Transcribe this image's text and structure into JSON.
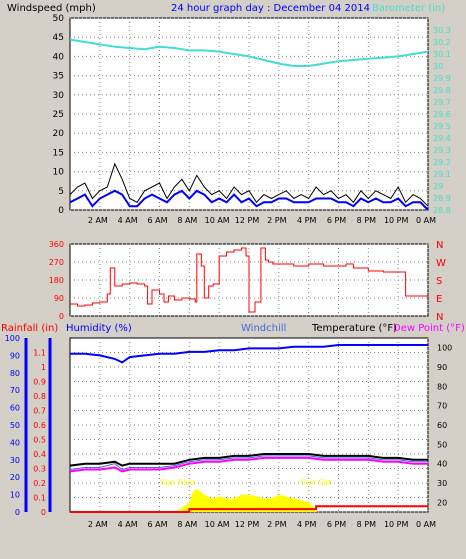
{
  "chart_data": [
    {
      "type": "line",
      "panel": "wind-barometer",
      "title": "24 hour graph day : December 04 2014",
      "ylabel": "Windspeed (mph)",
      "y2label": "Barometer (in)",
      "ylim": [
        0,
        50
      ],
      "y2lim": [
        28.8,
        30.4
      ],
      "yticks": [
        "0",
        "5",
        "10",
        "15",
        "20",
        "25",
        "30",
        "35",
        "40",
        "45",
        "50"
      ],
      "y2ticks": [
        "28.8",
        "28.9",
        "29",
        "29.1",
        "29.2",
        "29.3",
        "29.4",
        "29.5",
        "29.6",
        "29.7",
        "29.8",
        "29.9",
        "30",
        "30.1",
        "30.2",
        "30.3"
      ],
      "xticks": [
        "2 AM",
        "4 AM",
        "6 AM",
        "8 AM",
        "10 AM",
        "12 PM",
        "2 PM",
        "4 PM",
        "6 PM",
        "8 PM",
        "10 PM",
        "0 AM"
      ],
      "grid": true,
      "colors": {
        "gust": "#000000",
        "wind": "#0000ff",
        "avg": "#808080",
        "barometer": "#40e0d0",
        "title": "#0000ff"
      },
      "series": [
        {
          "name": "Barometer (in)",
          "axis": "right",
          "x": [
            0,
            1,
            2,
            3,
            4,
            5,
            6,
            7,
            8,
            9,
            10,
            11,
            12,
            13,
            14,
            15,
            16,
            17,
            18,
            19,
            20,
            21,
            22,
            23,
            24
          ],
          "values": [
            30.22,
            30.2,
            30.18,
            30.16,
            30.15,
            30.14,
            30.16,
            30.15,
            30.13,
            30.13,
            30.12,
            30.1,
            30.08,
            30.05,
            30.02,
            30.0,
            30.0,
            30.02,
            30.04,
            30.05,
            30.06,
            30.07,
            30.08,
            30.1,
            30.12
          ]
        },
        {
          "name": "Wind gust (mph)",
          "x": [
            0,
            0.5,
            1,
            1.5,
            2,
            2.5,
            3,
            3.5,
            4,
            4.5,
            5,
            5.5,
            6,
            6.5,
            7,
            7.5,
            8,
            8.5,
            9,
            9.5,
            10,
            10.5,
            11,
            11.5,
            12,
            12.5,
            13,
            13.5,
            14,
            14.5,
            15,
            15.5,
            16,
            16.5,
            17,
            17.5,
            18,
            18.5,
            19,
            19.5,
            20,
            20.5,
            21,
            21.5,
            22,
            22.5,
            23,
            23.5,
            24
          ],
          "values": [
            4,
            6,
            7,
            3,
            5,
            6,
            12,
            8,
            3,
            2,
            5,
            6,
            7,
            3,
            6,
            8,
            5,
            9,
            6,
            4,
            5,
            3,
            6,
            4,
            5,
            2,
            4,
            3,
            4,
            5,
            3,
            4,
            3,
            6,
            4,
            5,
            3,
            4,
            2,
            5,
            3,
            5,
            4,
            3,
            6,
            2,
            4,
            3,
            1
          ]
        },
        {
          "name": "Wind speed (mph)",
          "x": [
            0,
            0.5,
            1,
            1.5,
            2,
            2.5,
            3,
            3.5,
            4,
            4.5,
            5,
            5.5,
            6,
            6.5,
            7,
            7.5,
            8,
            8.5,
            9,
            9.5,
            10,
            10.5,
            11,
            11.5,
            12,
            12.5,
            13,
            13.5,
            14,
            14.5,
            15,
            15.5,
            16,
            16.5,
            17,
            17.5,
            18,
            18.5,
            19,
            19.5,
            20,
            20.5,
            21,
            21.5,
            22,
            22.5,
            23,
            23.5,
            24
          ],
          "values": [
            2,
            3,
            4,
            1,
            3,
            4,
            5,
            4,
            1,
            1,
            3,
            4,
            3,
            2,
            4,
            5,
            3,
            5,
            4,
            2,
            3,
            2,
            4,
            2,
            3,
            1,
            2,
            2,
            3,
            3,
            2,
            2,
            2,
            3,
            3,
            3,
            2,
            2,
            1,
            3,
            2,
            3,
            2,
            2,
            3,
            1,
            2,
            2,
            0
          ]
        }
      ]
    },
    {
      "type": "line",
      "panel": "wind-direction",
      "ylim": [
        0,
        360
      ],
      "yticks": [
        "0",
        "90",
        "180",
        "270",
        "360"
      ],
      "y2ticks": [
        "N",
        "E",
        "S",
        "W",
        "N"
      ],
      "xticks": [
        "2 AM",
        "4 AM",
        "6 AM",
        "8 AM",
        "10 AM",
        "12 PM",
        "2 PM",
        "4 PM",
        "6 PM",
        "8 PM",
        "10 PM",
        "0 AM"
      ],
      "grid": true,
      "colors": {
        "direction": "#ff0000"
      },
      "series": [
        {
          "name": "Wind direction (deg)",
          "x": [
            0,
            0.5,
            1,
            1.5,
            2,
            2.5,
            2.7,
            3,
            3.3,
            3.5,
            4,
            4.5,
            5,
            5.2,
            5.5,
            6,
            6.3,
            6.6,
            7,
            7.5,
            8,
            8.4,
            8.5,
            8.8,
            9,
            9.3,
            9.6,
            10,
            10.5,
            11,
            11.5,
            11.8,
            12.0,
            12.2,
            12.4,
            12.8,
            13.1,
            13.3,
            13.6,
            14,
            15,
            16,
            17,
            18,
            18.5,
            19,
            19.5,
            20,
            21,
            22,
            22.5,
            23,
            24
          ],
          "values": [
            60,
            50,
            55,
            65,
            70,
            110,
            240,
            150,
            150,
            160,
            165,
            160,
            150,
            60,
            130,
            110,
            70,
            100,
            80,
            90,
            85,
            70,
            310,
            250,
            90,
            150,
            160,
            300,
            320,
            330,
            340,
            300,
            20,
            20,
            70,
            340,
            280,
            270,
            260,
            260,
            250,
            260,
            250,
            250,
            260,
            240,
            240,
            225,
            220,
            220,
            100,
            100,
            95
          ]
        }
      ]
    },
    {
      "type": "line",
      "panel": "temperature-humidity-rain",
      "ylabel": "Temperature (°F)",
      "y2label": "Dew Point (°F)",
      "legend": [
        "Rainfall (in)",
        "Humidity (%)",
        "Windchill",
        "Temperature (°F)",
        "Dew Point (°F)"
      ],
      "ylim": [
        15,
        105
      ],
      "rain_lim": [
        0,
        1.2
      ],
      "hum_lim": [
        0,
        100
      ],
      "rain_ticks": [
        "0",
        "0.1",
        "0.2",
        "0.3",
        "0.4",
        "0.5",
        "0.6",
        "0.7",
        "0.8",
        "0.9",
        "1",
        "1.1"
      ],
      "hum_ticks": [
        "0",
        "10",
        "20",
        "30",
        "40",
        "50",
        "60",
        "70",
        "80",
        "90",
        "100"
      ],
      "temp_ticks": [
        "20",
        "30",
        "40",
        "50",
        "60",
        "70",
        "80",
        "90",
        "100"
      ],
      "xticks": [
        "2 AM",
        "4 AM",
        "6 AM",
        "8 AM",
        "10 AM",
        "12 PM",
        "2 PM",
        "4 PM",
        "6 PM",
        "8 PM",
        "10 PM",
        "0 AM"
      ],
      "annotations": [
        "Sun Rise",
        "Sun Set"
      ],
      "sunrise": 7.2,
      "sunset": 16.5,
      "grid": true,
      "colors": {
        "rain": "#ff0000",
        "humidity": "#0000ff",
        "windchill": "#4169e1",
        "temperature": "#000000",
        "dewpoint": "#ff00ff",
        "solar": "#ffff00"
      },
      "series": [
        {
          "name": "Humidity (%)",
          "axis": "humidity",
          "x": [
            0,
            1,
            2,
            3,
            3.5,
            4,
            5,
            6,
            7,
            8,
            9,
            10,
            11,
            12,
            13,
            14,
            15,
            16,
            17,
            18,
            19,
            20,
            21,
            22,
            23,
            24
          ],
          "values": [
            91,
            91,
            90,
            88,
            86,
            89,
            90,
            91,
            91,
            92,
            92,
            93,
            93,
            94,
            94,
            94,
            95,
            95,
            95,
            96,
            96,
            96,
            96,
            96,
            96,
            96
          ]
        },
        {
          "name": "Temperature (°F)",
          "axis": "temp",
          "x": [
            0,
            1,
            2,
            3,
            3.5,
            4,
            5,
            6,
            7,
            8,
            9,
            10,
            11,
            12,
            13,
            14,
            15,
            16,
            17,
            18,
            19,
            20,
            21,
            22,
            23,
            24
          ],
          "values": [
            39,
            40,
            40,
            41,
            39,
            40,
            40,
            40,
            40,
            42,
            43,
            43,
            44,
            44,
            45,
            45,
            45,
            45,
            44,
            44,
            44,
            44,
            43,
            43,
            42,
            42
          ]
        },
        {
          "name": "Windchill",
          "axis": "temp",
          "x": [
            0,
            1,
            2,
            3,
            3.5,
            4,
            5,
            6,
            7,
            8,
            9,
            10,
            11,
            12,
            13,
            14,
            15,
            16,
            17,
            18,
            19,
            20,
            21,
            22,
            23,
            24
          ],
          "values": [
            37,
            38,
            38,
            40,
            37,
            38,
            38,
            38,
            39,
            41,
            42,
            42,
            43,
            43,
            44,
            44,
            44,
            44,
            43,
            43,
            43,
            43,
            42,
            42,
            41,
            41
          ]
        },
        {
          "name": "Dew Point (°F)",
          "axis": "temp",
          "x": [
            0,
            1,
            2,
            3,
            3.5,
            4,
            5,
            6,
            7,
            8,
            9,
            10,
            11,
            12,
            13,
            14,
            15,
            16,
            17,
            18,
            19,
            20,
            21,
            22,
            23,
            24
          ],
          "values": [
            36,
            37,
            37,
            38,
            36,
            37,
            37,
            37,
            38,
            40,
            41,
            41,
            42,
            42,
            43,
            43,
            43,
            43,
            42,
            42,
            42,
            42,
            41,
            41,
            40,
            40
          ]
        },
        {
          "name": "Rainfall (in)",
          "axis": "rain",
          "x": [
            0,
            7.5,
            8,
            9,
            16,
            16.5,
            17,
            24
          ],
          "values": [
            0,
            0,
            0.02,
            0.02,
            0.02,
            0.04,
            0.04,
            0.04
          ]
        },
        {
          "name": "Solar",
          "axis": "temp",
          "x": [
            7.2,
            7.5,
            8,
            8.2,
            8.5,
            9,
            9.5,
            10,
            10.5,
            11,
            11.5,
            12,
            12.5,
            13,
            13.5,
            14,
            14.5,
            15,
            15.5,
            16,
            16.5
          ],
          "values": [
            16,
            17,
            20,
            25,
            27,
            24,
            22,
            23,
            22,
            22,
            24,
            24,
            23,
            22,
            22,
            24,
            23,
            22,
            21,
            20,
            16
          ]
        }
      ]
    }
  ]
}
